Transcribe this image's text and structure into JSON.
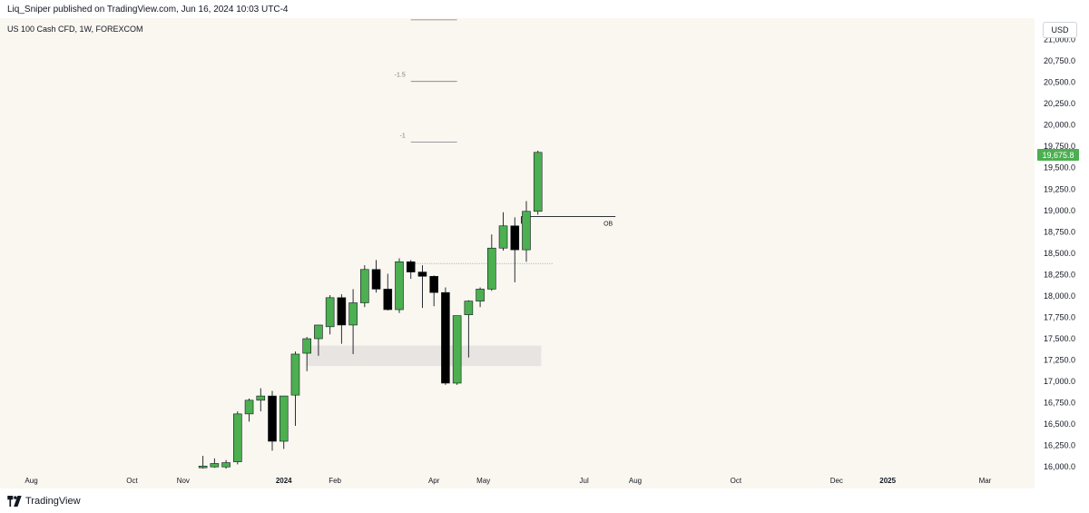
{
  "header": {
    "published_text": "Liq_Sniper published on TradingView.com, Jun 16, 2024 10:03 UTC-4"
  },
  "footer": {
    "logo_text": "TradingView"
  },
  "chart_data": {
    "type": "candlestick",
    "symbol_title": "US 100 Cash CFD, 1W, FOREXCOM",
    "currency": "USD",
    "last_price": "19,675.8",
    "colors": {
      "background": "#faf7f0",
      "up": "#4caf50",
      "down": "#000000",
      "wick": "#131722",
      "zone": "#e8e4e1",
      "last_price": "#4caf50"
    },
    "ylim": [
      15960,
      21250
    ],
    "xlim": [
      "2023-07-13",
      "2025-03-31"
    ],
    "y_ticks": [
      {
        "value": 16000,
        "label": "16,000.0"
      },
      {
        "value": 16250,
        "label": "16,250.0"
      },
      {
        "value": 16500,
        "label": "16,500.0"
      },
      {
        "value": 16750,
        "label": "16,750.0"
      },
      {
        "value": 17000,
        "label": "17,000.0"
      },
      {
        "value": 17250,
        "label": "17,250.0"
      },
      {
        "value": 17500,
        "label": "17,500.0"
      },
      {
        "value": 17750,
        "label": "17,750.0"
      },
      {
        "value": 18000,
        "label": "18,000.0"
      },
      {
        "value": 18250,
        "label": "18,250.0"
      },
      {
        "value": 18500,
        "label": "18,500.0"
      },
      {
        "value": 18750,
        "label": "18,750.0"
      },
      {
        "value": 19000,
        "label": "19,000.0"
      },
      {
        "value": 19250,
        "label": "19,250.0"
      },
      {
        "value": 19500,
        "label": "19,500.0"
      },
      {
        "value": 19750,
        "label": "19,750.0"
      },
      {
        "value": 20000,
        "label": "20,000.0"
      },
      {
        "value": 20250,
        "label": "20,250.0"
      },
      {
        "value": 20500,
        "label": "20,500.0"
      },
      {
        "value": 20750,
        "label": "20,750.0"
      },
      {
        "value": 21000,
        "label": "21,000.0"
      }
    ],
    "x_ticks": [
      {
        "date": "2023-08-01",
        "label": "Aug",
        "bold": false
      },
      {
        "date": "2023-10-01",
        "label": "Oct",
        "bold": false
      },
      {
        "date": "2023-11-01",
        "label": "Nov",
        "bold": false
      },
      {
        "date": "2024-01-01",
        "label": "2024",
        "bold": true
      },
      {
        "date": "2024-02-01",
        "label": "Feb",
        "bold": false
      },
      {
        "date": "2024-04-01",
        "label": "Apr",
        "bold": false
      },
      {
        "date": "2024-05-01",
        "label": "May",
        "bold": false
      },
      {
        "date": "2024-07-01",
        "label": "Jul",
        "bold": false
      },
      {
        "date": "2024-08-01",
        "label": "Aug",
        "bold": false
      },
      {
        "date": "2024-10-01",
        "label": "Oct",
        "bold": false
      },
      {
        "date": "2024-12-01",
        "label": "Dec",
        "bold": false
      },
      {
        "date": "2025-01-01",
        "label": "2025",
        "bold": true
      },
      {
        "date": "2025-03-01",
        "label": "Mar",
        "bold": false
      }
    ],
    "candles": [
      {
        "date": "2023-11-13",
        "open": 15990,
        "high": 16130,
        "low": 15980,
        "close": 16010
      },
      {
        "date": "2023-11-20",
        "open": 16000,
        "high": 16100,
        "low": 15990,
        "close": 16040
      },
      {
        "date": "2023-11-27",
        "open": 16000,
        "high": 16080,
        "low": 15980,
        "close": 16050
      },
      {
        "date": "2023-12-04",
        "open": 16060,
        "high": 16650,
        "low": 16030,
        "close": 16620
      },
      {
        "date": "2023-12-11",
        "open": 16620,
        "high": 16800,
        "low": 16530,
        "close": 16780
      },
      {
        "date": "2023-12-18",
        "open": 16780,
        "high": 16920,
        "low": 16650,
        "close": 16830
      },
      {
        "date": "2023-12-25",
        "open": 16830,
        "high": 16890,
        "low": 16190,
        "close": 16300
      },
      {
        "date": "2024-01-01",
        "open": 16300,
        "high": 16810,
        "low": 16210,
        "close": 16830
      },
      {
        "date": "2024-01-08",
        "open": 16840,
        "high": 17350,
        "low": 16480,
        "close": 17320
      },
      {
        "date": "2024-01-15",
        "open": 17330,
        "high": 17520,
        "low": 17120,
        "close": 17500
      },
      {
        "date": "2024-01-22",
        "open": 17500,
        "high": 17640,
        "low": 17300,
        "close": 17660
      },
      {
        "date": "2024-01-29",
        "open": 17640,
        "high": 18010,
        "low": 17550,
        "close": 17980
      },
      {
        "date": "2024-02-05",
        "open": 17980,
        "high": 18020,
        "low": 17440,
        "close": 17660
      },
      {
        "date": "2024-02-12",
        "open": 17660,
        "high": 18080,
        "low": 17320,
        "close": 17920
      },
      {
        "date": "2024-02-19",
        "open": 17920,
        "high": 18360,
        "low": 17870,
        "close": 18310
      },
      {
        "date": "2024-02-26",
        "open": 18310,
        "high": 18420,
        "low": 18040,
        "close": 18080
      },
      {
        "date": "2024-03-04",
        "open": 18080,
        "high": 18260,
        "low": 17830,
        "close": 17840
      },
      {
        "date": "2024-03-11",
        "open": 17840,
        "high": 18440,
        "low": 17800,
        "close": 18400
      },
      {
        "date": "2024-03-18",
        "open": 18400,
        "high": 18420,
        "low": 18200,
        "close": 18280
      },
      {
        "date": "2024-03-25",
        "open": 18280,
        "high": 18360,
        "low": 17860,
        "close": 18230
      },
      {
        "date": "2024-04-01",
        "open": 18230,
        "high": 18240,
        "low": 17880,
        "close": 18040
      },
      {
        "date": "2024-04-08",
        "open": 18040,
        "high": 18100,
        "low": 16960,
        "close": 16980
      },
      {
        "date": "2024-04-15",
        "open": 16980,
        "high": 17760,
        "low": 16960,
        "close": 17770
      },
      {
        "date": "2024-04-22",
        "open": 17780,
        "high": 17950,
        "low": 17280,
        "close": 17940
      },
      {
        "date": "2024-04-29",
        "open": 17940,
        "high": 18100,
        "low": 17870,
        "close": 18080
      },
      {
        "date": "2024-05-06",
        "open": 18080,
        "high": 18720,
        "low": 18060,
        "close": 18560
      },
      {
        "date": "2024-05-13",
        "open": 18560,
        "high": 18980,
        "low": 18530,
        "close": 18820
      },
      {
        "date": "2024-05-20",
        "open": 18820,
        "high": 18920,
        "low": 18160,
        "close": 18540
      },
      {
        "date": "2024-05-27",
        "open": 18540,
        "high": 19110,
        "low": 18400,
        "close": 18990
      },
      {
        "date": "2024-06-03",
        "open": 18990,
        "high": 19700,
        "low": 18950,
        "close": 19680
      }
    ],
    "fib_levels": [
      {
        "label": "",
        "value": 21230,
        "start": "2024-03-18",
        "end": "2024-04-15"
      },
      {
        "label": "-1.5",
        "value": 20510,
        "start": "2024-03-18",
        "end": "2024-04-15"
      },
      {
        "label": "-1",
        "value": 19800,
        "start": "2024-03-18",
        "end": "2024-04-15"
      }
    ],
    "zone": {
      "start": "2024-01-15",
      "end": "2024-06-05",
      "top": 17420,
      "bottom": 17180
    },
    "ob_line": {
      "label": "OB",
      "value": 18930,
      "start": "2024-05-24",
      "end": "2024-07-20"
    },
    "dotted_line": {
      "value": 18380,
      "start": "2024-03-18",
      "end": "2024-06-12"
    }
  }
}
